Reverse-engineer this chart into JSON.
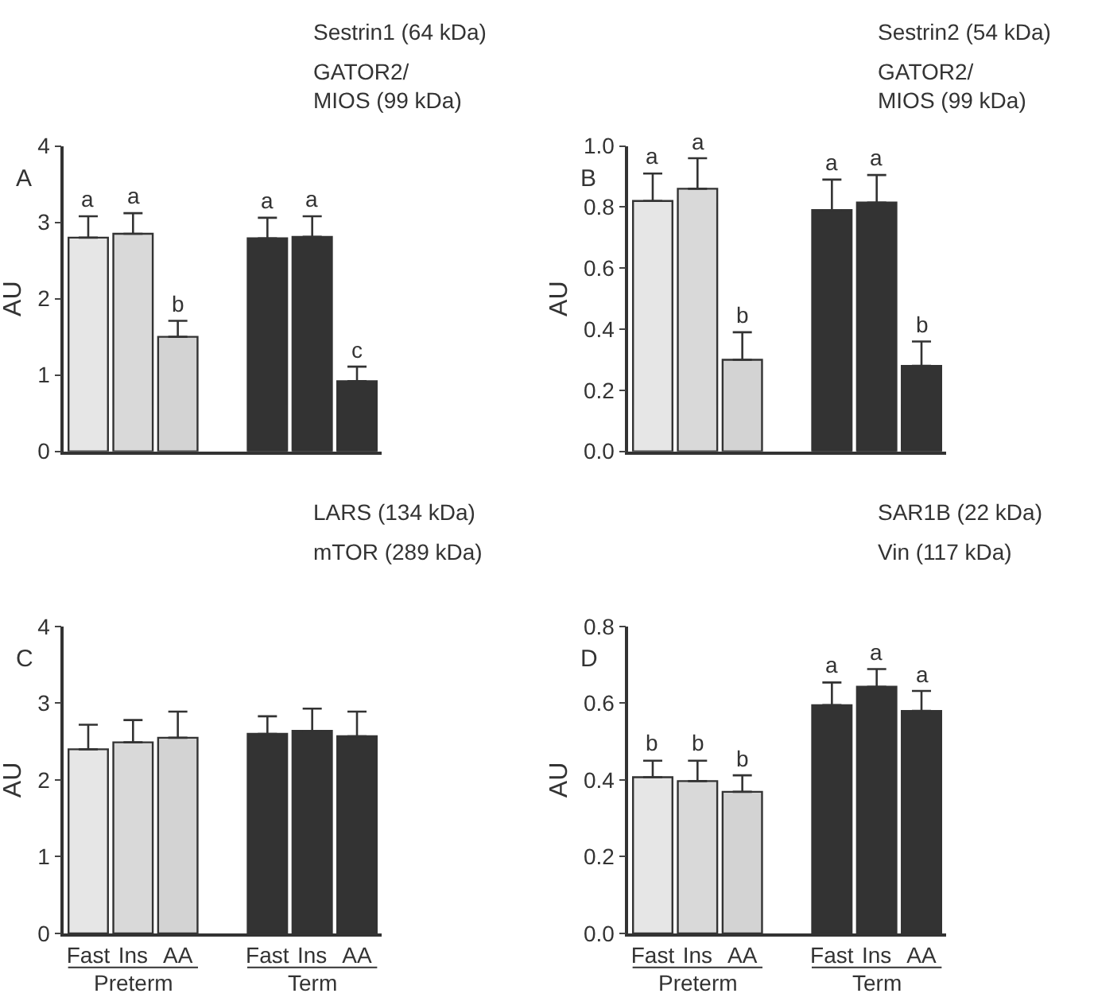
{
  "chart_data": [
    {
      "type": "bar",
      "title": "A",
      "ylabel": "AU",
      "tick_labels": "y",
      "categories": [
        null,
        null,
        null,
        null,
        null,
        null,
        null
      ],
      "values": [
        2.8,
        2.85,
        1.5,
        null,
        2.79,
        2.81,
        0.92
      ],
      "errors": [
        [
          2.8,
          3.08
        ],
        [
          2.85,
          3.12
        ],
        [
          1.5,
          1.71
        ],
        null,
        [
          2.79,
          3.06
        ],
        [
          2.81,
          3.08
        ],
        [
          0.92,
          1.11
        ]
      ],
      "value_labels": [
        "a",
        "a",
        "b",
        null,
        "a",
        "a",
        "c"
      ],
      "colors": [
        "#e6e6e6",
        "#d9d9d9",
        "#d3d3d3",
        null,
        "#333333",
        "#333333",
        "#333333"
      ],
      "ylim": [
        0,
        4
      ],
      "yticks": [
        0,
        1,
        2,
        3,
        4
      ],
      "annotations": [
        "Sestrin1 (64 kDa)",
        "GATOR2/\nMIOS (99 kDa)"
      ]
    },
    {
      "type": "bar",
      "title": "B",
      "ylabel": "AU",
      "tick_labels": "y",
      "categories": [
        null,
        null,
        null,
        null,
        null,
        null,
        null
      ],
      "values": [
        0.82,
        0.86,
        0.3,
        null,
        0.79,
        0.815,
        0.28
      ],
      "errors": [
        [
          0.82,
          0.91
        ],
        [
          0.86,
          0.96
        ],
        [
          0.3,
          0.39
        ],
        null,
        [
          0.79,
          0.89
        ],
        [
          0.815,
          0.905
        ],
        [
          0.28,
          0.36
        ]
      ],
      "value_labels": [
        "a",
        "a",
        "b",
        null,
        "a",
        "a",
        "b"
      ],
      "colors": [
        "#e6e6e6",
        "#d9d9d9",
        "#d3d3d3",
        null,
        "#333333",
        "#333333",
        "#333333"
      ],
      "ylim": [
        0,
        1
      ],
      "yticks": [
        {
          "value": 0,
          "label": "0.0"
        },
        {
          "value": 0.2,
          "label": "0.2"
        },
        {
          "value": 0.4,
          "label": "0.4"
        },
        {
          "value": 0.6,
          "label": "0.6"
        },
        {
          "value": 0.8,
          "label": "0.8"
        },
        {
          "value": 1,
          "label": "1.0"
        }
      ],
      "annotations": [
        "Sestrin2 (54 kDa)",
        "GATOR2/\nMIOS (99 kDa)"
      ]
    },
    {
      "type": "bar",
      "title": "C",
      "ylabel": "AU",
      "categories": [
        "Fast",
        "Ins",
        "AA",
        null,
        "Fast",
        "Ins",
        "AA"
      ],
      "values": [
        2.4,
        2.49,
        2.55,
        null,
        2.6,
        2.64,
        2.57
      ],
      "errors": [
        [
          2.4,
          2.72
        ],
        [
          2.49,
          2.78
        ],
        [
          2.55,
          2.89
        ],
        null,
        [
          2.6,
          2.83
        ],
        [
          2.64,
          2.93
        ],
        [
          2.57,
          2.89
        ]
      ],
      "colors": [
        "#e6e6e6",
        "#d9d9d9",
        "#d3d3d3",
        null,
        "#333333",
        "#333333",
        "#333333"
      ],
      "ylim": [
        0,
        4
      ],
      "yticks": [
        0,
        1,
        2,
        3,
        4
      ],
      "annotations": [
        "LARS (134 kDa)",
        "mTOR (289 kDa)",
        "Preterm",
        "Term"
      ]
    },
    {
      "type": "bar",
      "title": "D",
      "ylabel": "AU",
      "categories": [
        "Fast",
        "Ins",
        "AA",
        null,
        "Fast",
        "Ins",
        "AA"
      ],
      "values": [
        0.407,
        0.397,
        0.369,
        null,
        0.595,
        0.643,
        0.58
      ],
      "errors": [
        [
          0.407,
          0.45
        ],
        [
          0.397,
          0.45
        ],
        [
          0.369,
          0.412
        ],
        null,
        [
          0.595,
          0.654
        ],
        [
          0.643,
          0.689
        ],
        [
          0.58,
          0.632
        ]
      ],
      "value_labels": [
        "b",
        "b",
        "b",
        null,
        "a",
        "a",
        "a"
      ],
      "colors": [
        "#e6e6e6",
        "#d9d9d9",
        "#d3d3d3",
        null,
        "#333333",
        "#333333",
        "#333333"
      ],
      "ylim": [
        0,
        0.8
      ],
      "yticks": [
        {
          "value": 0,
          "label": "0.0"
        },
        {
          "value": 0.2,
          "label": "0.2"
        },
        {
          "value": 0.4,
          "label": "0.4"
        },
        {
          "value": 0.6,
          "label": "0.6"
        },
        {
          "value": 0.8,
          "label": "0.8"
        }
      ],
      "annotations": [
        "SAR1B (22 kDa)",
        "Vin (117 kDa)",
        "Preterm",
        "Term"
      ]
    }
  ]
}
